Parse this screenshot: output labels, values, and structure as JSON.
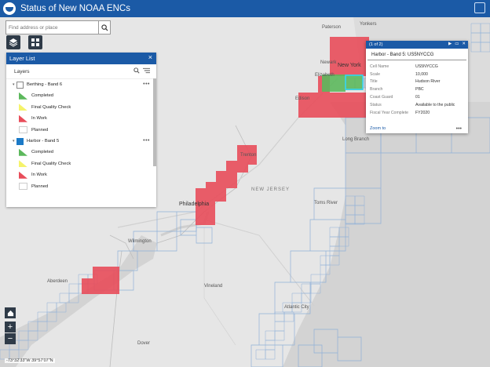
{
  "app": {
    "title": "Status of New NOAA ENCs"
  },
  "search": {
    "placeholder": "Find address or place"
  },
  "icons": {
    "layers": "layers-icon",
    "basemap": "basemap-gallery-icon",
    "home": "home-icon",
    "search": "search-icon",
    "close": "close-icon",
    "filter": "filter-icon",
    "more": "more-options-icon"
  },
  "layer_list": {
    "title": "Layer List",
    "close_label": "×",
    "section_label": "Layers",
    "groups": [
      {
        "name": "Berthing - Band 6",
        "checked": false,
        "items": [
          "Completed",
          "Final Quality Check",
          "In Work",
          "Planned"
        ]
      },
      {
        "name": "Harbor - Band 5",
        "checked": true,
        "items": [
          "Completed",
          "Final Quality Check",
          "In Work",
          "Planned"
        ]
      }
    ]
  },
  "popup": {
    "pager": "(1 of 2)",
    "title": "Harbor - Band 5: US5NYCCG",
    "fields": [
      {
        "key": "Cell Name",
        "value": "US5NYCCG"
      },
      {
        "key": "Scale",
        "value": "10,000"
      },
      {
        "key": "Title",
        "value": "Hudson River"
      },
      {
        "key": "Branch",
        "value": "PBC"
      },
      {
        "key": "Coast Guard",
        "value": "01"
      },
      {
        "key": "Status",
        "value": "Available to the public"
      },
      {
        "key": "Fiscal Year Complete",
        "value": "FY2020"
      }
    ],
    "zoom_label": "Zoom to",
    "more_label": "•••"
  },
  "map": {
    "places": [
      "Paterson",
      "Yonkers",
      "Newark",
      "New York",
      "Elizabeth",
      "Edison",
      "Long Branch",
      "Trenton",
      "NEW JERSEY",
      "Philadelphia",
      "Toms River",
      "Wilmington",
      "Vineland",
      "Aberdeen",
      "Atlantic City",
      "Dover"
    ],
    "zoom_in": "+",
    "zoom_out": "−"
  },
  "coords": {
    "text": "-73°32'33\"W 39°57'07\"N"
  },
  "colors": {
    "header": "#1b5aa6",
    "in_work": "#e84d5a",
    "completed": "#5cb85c",
    "final_qc": "#f5f36b",
    "grid": "#8fb0d8"
  }
}
